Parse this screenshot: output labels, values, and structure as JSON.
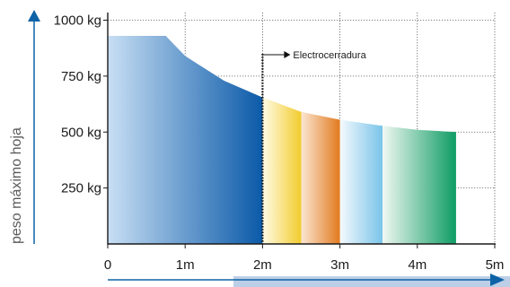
{
  "chart_data": {
    "type": "area",
    "title": "",
    "xlabel": "",
    "ylabel": "peso máximo hoja",
    "x_ticks": [
      "0",
      "1m",
      "2m",
      "3m",
      "4m",
      "5m"
    ],
    "y_ticks": [
      "250 kg",
      "500 kg",
      "750 kg",
      "1000 kg"
    ],
    "xlim": [
      0,
      5
    ],
    "ylim": [
      0,
      1000
    ],
    "grid": "dotted",
    "curve": {
      "x": [
        0,
        0.75,
        1.0,
        1.5,
        2.0,
        2.5,
        3.0,
        3.5,
        4.0,
        4.5
      ],
      "y": [
        930,
        930,
        840,
        730,
        655,
        590,
        555,
        530,
        510,
        500
      ]
    },
    "segments": [
      {
        "from": 0,
        "to": 2.0,
        "colors": [
          "#c8dff4",
          "#0b5aa8"
        ]
      },
      {
        "from": 2.0,
        "to": 2.5,
        "colors": [
          "#fffbe6",
          "#f2cc2e"
        ]
      },
      {
        "from": 2.5,
        "to": 3.0,
        "colors": [
          "#fbe6d2",
          "#e27a1e"
        ]
      },
      {
        "from": 3.0,
        "to": 3.55,
        "colors": [
          "#f4f9fd",
          "#7ac4ea"
        ]
      },
      {
        "from": 3.55,
        "to": 4.5,
        "colors": [
          "#f1f8f3",
          "#0e9c64"
        ]
      }
    ],
    "annotation": {
      "label": "Electrocerradura",
      "x": 2.0
    },
    "colors": {
      "axis": "#1a1a1a",
      "grid": "#555555",
      "arrow": "#0d63a6",
      "bottom_band": "#bccfe6"
    }
  }
}
